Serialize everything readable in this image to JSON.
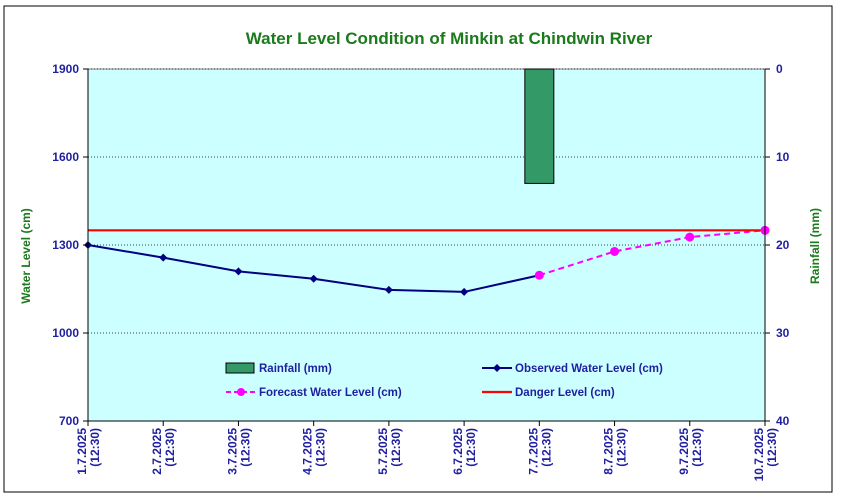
{
  "chart_data": {
    "type": "line",
    "title": "Water Level Condition of Minkin at Chindwin River",
    "ylabel": "Water Level (cm)",
    "y2label": "Rainfall (mm)",
    "ylim": [
      700,
      1900
    ],
    "yticks": [
      700,
      1000,
      1300,
      1600,
      1900
    ],
    "y2lim": [
      0,
      40
    ],
    "y2ticks": [
      0,
      10,
      20,
      30,
      40
    ],
    "y2_reversed": true,
    "grid": "horizontal dotted",
    "plot_background": "#ccffff",
    "categories": [
      {
        "date": "1.7.2025",
        "time": "(12:30)"
      },
      {
        "date": "2.7.2025",
        "time": "(12:30)"
      },
      {
        "date": "3.7.2025",
        "time": "(12:30)"
      },
      {
        "date": "4.7.2025",
        "time": "(12:30)"
      },
      {
        "date": "5.7.2025",
        "time": "(12:30)"
      },
      {
        "date": "6.7.2025",
        "time": "(12:30)"
      },
      {
        "date": "7.7.2025",
        "time": "(12:30)"
      },
      {
        "date": "8.7.2025",
        "time": "(12:30)"
      },
      {
        "date": "9.7.2025",
        "time": "(12:30)"
      },
      {
        "date": "10.7.2025",
        "time": "(12:30)"
      }
    ],
    "series": [
      {
        "name": "Rainfall (mm)",
        "type": "bar",
        "axis": "y2",
        "color": "#339966",
        "values": [
          null,
          null,
          null,
          null,
          null,
          null,
          13,
          null,
          null,
          null
        ]
      },
      {
        "name": "Observed Water Level (cm)",
        "type": "line",
        "color": "#000080",
        "marker": "diamond",
        "values": [
          1300,
          1257,
          1210,
          1185,
          1147,
          1140,
          1197,
          null,
          null,
          null
        ]
      },
      {
        "name": "Forecast Water Level (cm)",
        "type": "line",
        "dashed": true,
        "color": "#ff00ff",
        "marker": "circle",
        "values": [
          null,
          null,
          null,
          null,
          null,
          null,
          1197,
          1278,
          1327,
          1350
        ]
      },
      {
        "name": "Danger Level (cm)",
        "type": "line",
        "color": "#ff0000",
        "values": [
          1350,
          1350,
          1350,
          1350,
          1350,
          1350,
          1350,
          1350,
          1350,
          1350
        ]
      }
    ],
    "legend": [
      {
        "label": "Rainfall (mm)",
        "kind": "bar",
        "color": "#339966"
      },
      {
        "label": "Observed Water Level (cm)",
        "kind": "line-diamond",
        "color": "#000080"
      },
      {
        "label": "Forecast Water Level (cm)",
        "kind": "dash-circle",
        "color": "#ff00ff"
      },
      {
        "label": "Danger Level (cm)",
        "kind": "line",
        "color": "#ff0000"
      }
    ],
    "legend_position": "inside-bottom"
  }
}
